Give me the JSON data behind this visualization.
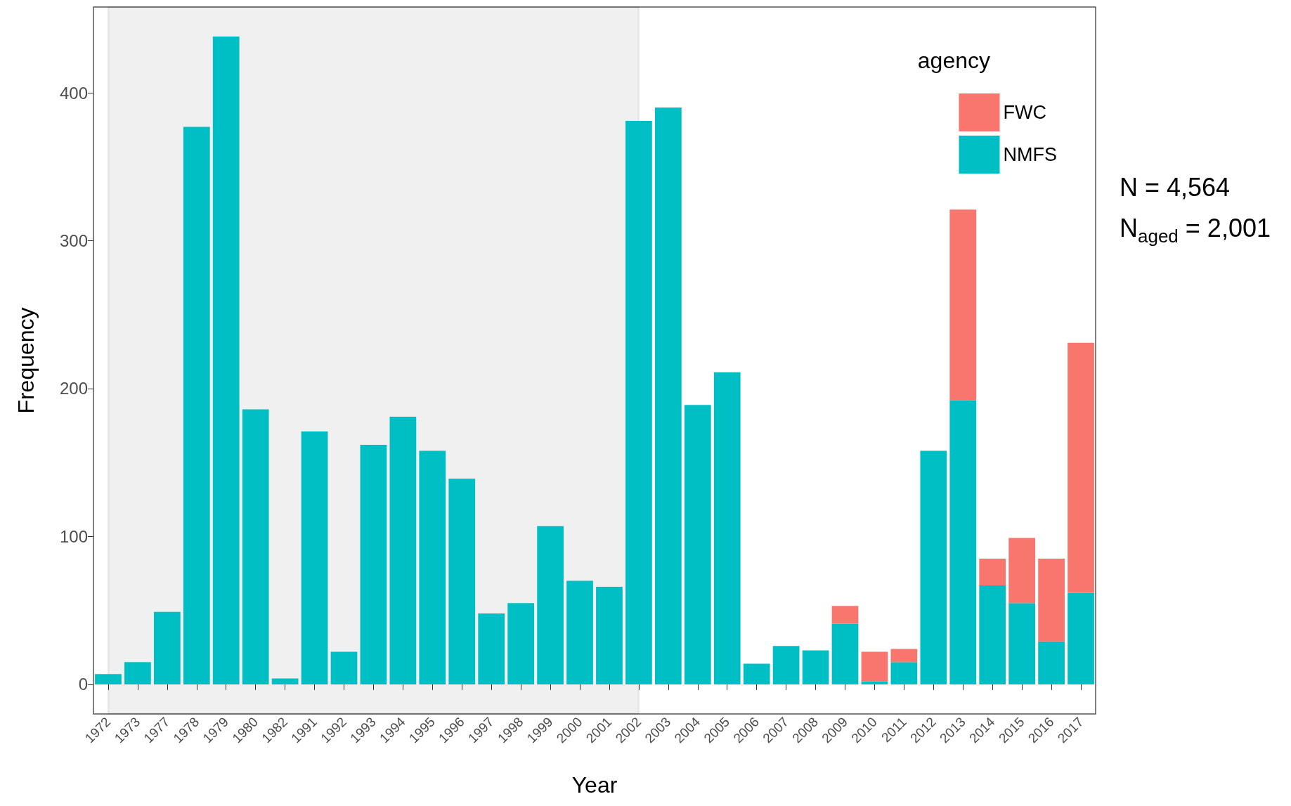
{
  "chart_data": {
    "type": "bar",
    "stacked": true,
    "xlabel": "Year",
    "ylabel": "Frequency",
    "legend_title": "agency",
    "legend": "top right",
    "grid": false,
    "categories": [
      "1972",
      "1973",
      "1977",
      "1978",
      "1979",
      "1980",
      "1982",
      "1991",
      "1992",
      "1993",
      "1994",
      "1995",
      "1996",
      "1997",
      "1998",
      "1999",
      "2000",
      "2001",
      "2002",
      "2003",
      "2004",
      "2005",
      "2006",
      "2007",
      "2008",
      "2009",
      "2010",
      "2011",
      "2012",
      "2013",
      "2014",
      "2015",
      "2016",
      "2017"
    ],
    "series": [
      {
        "name": "NMFS",
        "color": "#00bfc4",
        "values": [
          7,
          15,
          49,
          377,
          438,
          186,
          4,
          171,
          22,
          162,
          181,
          158,
          139,
          48,
          55,
          107,
          70,
          66,
          381,
          390,
          189,
          211,
          14,
          26,
          23,
          41,
          2,
          15,
          158,
          192,
          67,
          55,
          29,
          62
        ]
      },
      {
        "name": "FWC",
        "color": "#f8766d",
        "values": [
          null,
          null,
          null,
          null,
          null,
          null,
          null,
          null,
          null,
          null,
          null,
          null,
          null,
          null,
          null,
          null,
          null,
          null,
          null,
          null,
          null,
          null,
          null,
          null,
          null,
          12,
          20,
          9,
          null,
          129,
          18,
          44,
          56,
          169
        ]
      }
    ],
    "ylim": [
      -20,
      458
    ],
    "yticks": [
      0,
      100,
      200,
      300,
      400
    ],
    "bands": [
      {
        "axis": "x",
        "from": "1972",
        "to": "2002",
        "color": "#000000"
      }
    ],
    "annotations": [
      "N = 4,564",
      "N$_{aged}$ = 2,001"
    ]
  }
}
